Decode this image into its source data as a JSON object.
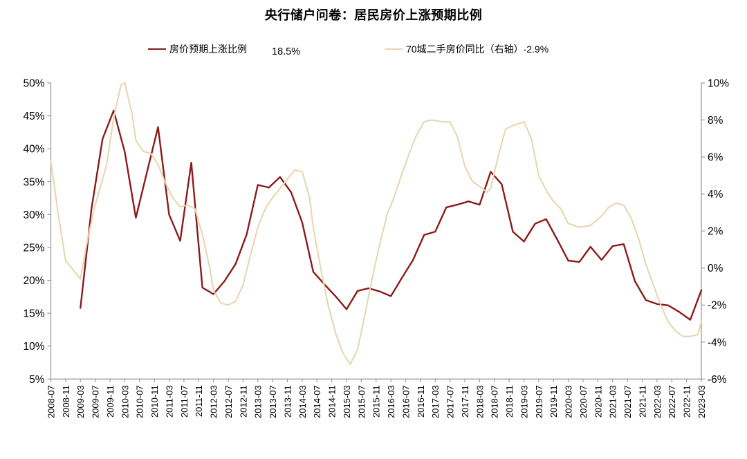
{
  "title": "央行储户问卷：居民房价上涨预期比例",
  "legend": {
    "items": [
      {
        "label": "房价预期上涨比例",
        "color": "#8B1A1A",
        "value_label": "18.5%"
      },
      {
        "label": "70城二手房价同比（右轴）-2.9%",
        "color": "#E8D6B0",
        "value_label": ""
      }
    ]
  },
  "chart_data": {
    "type": "line",
    "title": "央行储户问卷：居民房价上涨预期比例",
    "x_range": [
      "2008-07",
      "2023-03"
    ],
    "x_tick_labels": [
      "2008-07",
      "2008-11",
      "2009-03",
      "2009-07",
      "2009-11",
      "2010-03",
      "2010-07",
      "2010-11",
      "2011-03",
      "2011-07",
      "2011-11",
      "2012-03",
      "2012-07",
      "2012-11",
      "2013-03",
      "2013-07",
      "2013-11",
      "2014-03",
      "2014-07",
      "2014-11",
      "2015-03",
      "2015-07",
      "2015-11",
      "2016-03",
      "2016-07",
      "2016-11",
      "2017-03",
      "2017-07",
      "2017-11",
      "2018-03",
      "2018-07",
      "2018-11",
      "2019-03",
      "2019-07",
      "2019-11",
      "2020-03",
      "2020-07",
      "2020-11",
      "2021-03",
      "2021-07",
      "2021-11",
      "2022-03",
      "2022-07",
      "2022-11",
      "2023-03"
    ],
    "left_axis": {
      "min": 5,
      "max": 50,
      "step": 5,
      "tick_labels": [
        "50%",
        "45%",
        "40%",
        "35%",
        "30%",
        "25%",
        "20%",
        "15%",
        "10%",
        "5%"
      ]
    },
    "right_axis": {
      "min": -6,
      "max": 10,
      "step": 2,
      "tick_labels": [
        "10%",
        "8%",
        "6%",
        "4%",
        "2%",
        "0%",
        "-2%",
        "-4%",
        "-6%"
      ]
    },
    "axis_color": "#9a9a9a",
    "grid": false,
    "legend_position": "top",
    "series": [
      {
        "name": "房价预期上涨比例",
        "axis": "left",
        "color": "#8B1A1A",
        "stroke_width": 2.4,
        "last_value_label": "18.5%",
        "points": [
          [
            "2009-03",
            15.8
          ],
          [
            "2009-06",
            30.9
          ],
          [
            "2009-09",
            41.5
          ],
          [
            "2009-12",
            45.8
          ],
          [
            "2010-03",
            39.5
          ],
          [
            "2010-06",
            29.5
          ],
          [
            "2010-09",
            36.4
          ],
          [
            "2010-12",
            43.3
          ],
          [
            "2011-03",
            30.0
          ],
          [
            "2011-06",
            26.0
          ],
          [
            "2011-09",
            37.9
          ],
          [
            "2011-12",
            18.9
          ],
          [
            "2012-03",
            17.9
          ],
          [
            "2012-06",
            19.9
          ],
          [
            "2012-09",
            22.5
          ],
          [
            "2012-12",
            27.0
          ],
          [
            "2013-03",
            34.5
          ],
          [
            "2013-06",
            34.1
          ],
          [
            "2013-09",
            35.7
          ],
          [
            "2013-12",
            33.4
          ],
          [
            "2014-03",
            28.8
          ],
          [
            "2014-06",
            21.3
          ],
          [
            "2014-09",
            19.4
          ],
          [
            "2014-12",
            17.6
          ],
          [
            "2015-03",
            15.6
          ],
          [
            "2015-06",
            18.4
          ],
          [
            "2015-09",
            18.8
          ],
          [
            "2015-12",
            18.3
          ],
          [
            "2016-03",
            17.6
          ],
          [
            "2016-06",
            20.4
          ],
          [
            "2016-09",
            23.1
          ],
          [
            "2016-12",
            26.9
          ],
          [
            "2017-03",
            27.4
          ],
          [
            "2017-06",
            31.1
          ],
          [
            "2017-09",
            31.5
          ],
          [
            "2017-12",
            32.0
          ],
          [
            "2018-03",
            31.5
          ],
          [
            "2018-06",
            36.5
          ],
          [
            "2018-09",
            34.6
          ],
          [
            "2018-12",
            27.4
          ],
          [
            "2019-03",
            25.9
          ],
          [
            "2019-06",
            28.6
          ],
          [
            "2019-09",
            29.3
          ],
          [
            "2019-12",
            26.2
          ],
          [
            "2020-03",
            23.0
          ],
          [
            "2020-06",
            22.8
          ],
          [
            "2020-09",
            25.1
          ],
          [
            "2020-12",
            23.1
          ],
          [
            "2021-03",
            25.2
          ],
          [
            "2021-06",
            25.5
          ],
          [
            "2021-09",
            19.9
          ],
          [
            "2021-12",
            17.0
          ],
          [
            "2022-03",
            16.4
          ],
          [
            "2022-06",
            16.2
          ],
          [
            "2022-09",
            15.2
          ],
          [
            "2022-12",
            14.0
          ],
          [
            "2023-03",
            18.5
          ]
        ]
      },
      {
        "name": "70城二手房价同比（右轴）",
        "axis": "right",
        "color": "#E8D6B0",
        "stroke_width": 2.1,
        "last_value_label": "-2.9%",
        "points": [
          [
            "2008-07",
            5.8
          ],
          [
            "2008-09",
            2.9
          ],
          [
            "2008-11",
            0.4
          ],
          [
            "2009-01",
            -0.1
          ],
          [
            "2009-03",
            -0.6
          ],
          [
            "2009-05",
            1.6
          ],
          [
            "2009-07",
            3.4
          ],
          [
            "2009-10",
            5.5
          ],
          [
            "2009-12",
            8.1
          ],
          [
            "2010-02",
            9.9
          ],
          [
            "2010-03",
            10.0
          ],
          [
            "2010-05",
            8.3
          ],
          [
            "2010-06",
            6.9
          ],
          [
            "2010-08",
            6.3
          ],
          [
            "2010-10",
            6.2
          ],
          [
            "2010-12",
            5.6
          ],
          [
            "2011-02",
            4.6
          ],
          [
            "2011-04",
            3.8
          ],
          [
            "2011-06",
            3.3
          ],
          [
            "2011-08",
            3.4
          ],
          [
            "2011-10",
            3.2
          ],
          [
            "2011-12",
            1.8
          ],
          [
            "2012-02",
            0.0
          ],
          [
            "2012-03",
            -1.2
          ],
          [
            "2012-05",
            -1.9
          ],
          [
            "2012-07",
            -2.0
          ],
          [
            "2012-09",
            -1.8
          ],
          [
            "2012-11",
            -0.9
          ],
          [
            "2013-01",
            0.7
          ],
          [
            "2013-03",
            2.2
          ],
          [
            "2013-05",
            3.2
          ],
          [
            "2013-07",
            3.8
          ],
          [
            "2013-09",
            4.3
          ],
          [
            "2013-11",
            4.8
          ],
          [
            "2014-01",
            5.3
          ],
          [
            "2014-03",
            5.2
          ],
          [
            "2014-05",
            3.8
          ],
          [
            "2014-06",
            2.2
          ],
          [
            "2014-08",
            0.0
          ],
          [
            "2014-10",
            -2.0
          ],
          [
            "2014-12",
            -3.5
          ],
          [
            "2015-02",
            -4.6
          ],
          [
            "2015-04",
            -5.2
          ],
          [
            "2015-06",
            -4.4
          ],
          [
            "2015-08",
            -2.5
          ],
          [
            "2015-10",
            -0.5
          ],
          [
            "2015-12",
            1.3
          ],
          [
            "2016-02",
            2.9
          ],
          [
            "2016-04",
            3.9
          ],
          [
            "2016-06",
            5.1
          ],
          [
            "2016-08",
            6.2
          ],
          [
            "2016-10",
            7.2
          ],
          [
            "2016-12",
            7.9
          ],
          [
            "2017-02",
            8.0
          ],
          [
            "2017-05",
            7.9
          ],
          [
            "2017-07",
            7.9
          ],
          [
            "2017-09",
            7.1
          ],
          [
            "2017-11",
            5.5
          ],
          [
            "2018-01",
            4.7
          ],
          [
            "2018-03",
            4.4
          ],
          [
            "2018-05",
            4.1
          ],
          [
            "2018-06",
            4.3
          ],
          [
            "2018-08",
            6.0
          ],
          [
            "2018-10",
            7.5
          ],
          [
            "2018-12",
            7.7
          ],
          [
            "2019-03",
            7.9
          ],
          [
            "2019-05",
            7.0
          ],
          [
            "2019-07",
            5.0
          ],
          [
            "2019-09",
            4.2
          ],
          [
            "2019-11",
            3.6
          ],
          [
            "2020-01",
            3.2
          ],
          [
            "2020-03",
            2.4
          ],
          [
            "2020-06",
            2.2
          ],
          [
            "2020-09",
            2.3
          ],
          [
            "2020-12",
            2.8
          ],
          [
            "2021-02",
            3.3
          ],
          [
            "2021-04",
            3.5
          ],
          [
            "2021-06",
            3.4
          ],
          [
            "2021-08",
            2.7
          ],
          [
            "2021-10",
            1.6
          ],
          [
            "2021-12",
            0.2
          ],
          [
            "2022-02",
            -0.9
          ],
          [
            "2022-04",
            -2.0
          ],
          [
            "2022-06",
            -2.9
          ],
          [
            "2022-08",
            -3.4
          ],
          [
            "2022-10",
            -3.7
          ],
          [
            "2022-12",
            -3.7
          ],
          [
            "2023-02",
            -3.6
          ],
          [
            "2023-03",
            -2.9
          ]
        ]
      }
    ]
  }
}
